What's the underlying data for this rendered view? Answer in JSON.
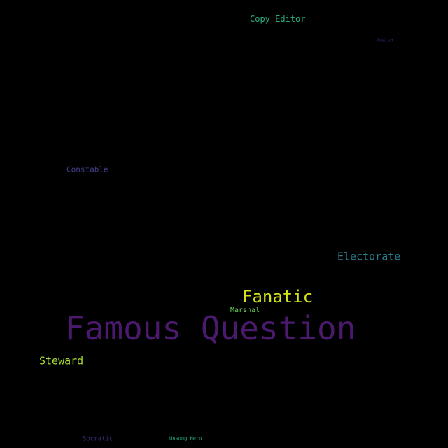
{
  "words": {
    "famous_question": {
      "text": "Famous Question",
      "color": "#4b1a6e"
    },
    "fanatic": {
      "text": "Fanatic",
      "color": "#d2e21b"
    },
    "electorate": {
      "text": "Electorate",
      "color": "#2a7e8e"
    },
    "steward": {
      "text": "Steward",
      "color": "#a8db34"
    },
    "copy_editor": {
      "text": "Copy Editor",
      "color": "#2ab07f"
    },
    "constable": {
      "text": "Constable",
      "color": "#433e85"
    },
    "marshal": {
      "text": "Marshal",
      "color": "#6ccd5a"
    },
    "socratic": {
      "text": "Socratic",
      "color": "#3e2a7a"
    },
    "unsung_hero": {
      "text": "Unsung Hero",
      "color": "#29af7f"
    },
    "populist": {
      "text": "Populist",
      "color": "#3b2f80"
    }
  },
  "background_color": "#000000"
}
